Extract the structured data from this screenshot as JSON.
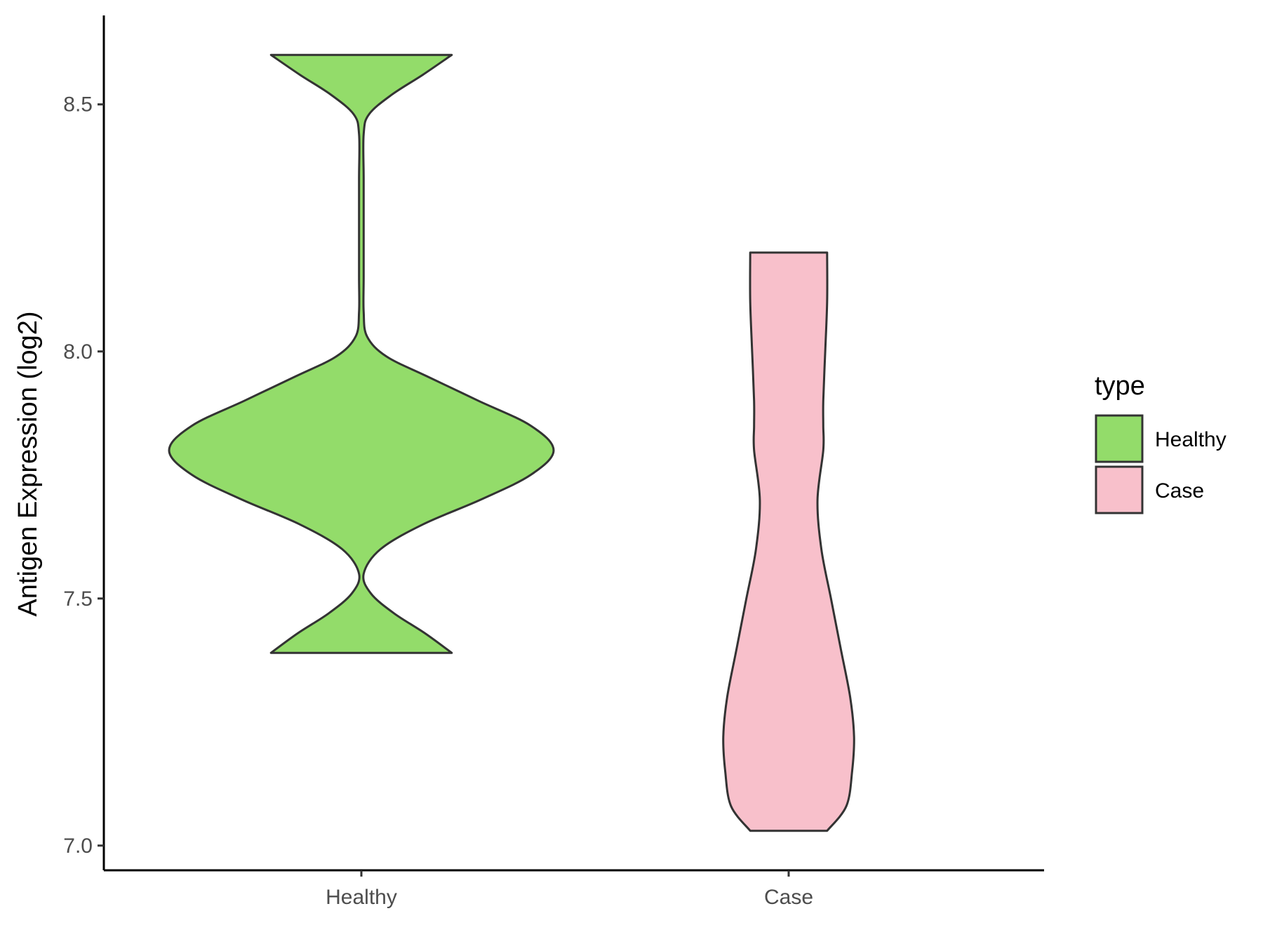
{
  "chart_data": {
    "type": "violin",
    "title": "",
    "xlabel": "",
    "ylabel": "Antigen Expression (log2)",
    "ylim": [
      6.95,
      8.68
    ],
    "yticks": [
      7.0,
      7.5,
      8.0,
      8.5
    ],
    "ytick_labels": [
      "7.0",
      "7.5",
      "8.0",
      "8.5"
    ],
    "categories": [
      "Healthy",
      "Case"
    ],
    "legend": {
      "title": "type",
      "position": "right",
      "entries": [
        "Healthy",
        "Case"
      ]
    },
    "grid": false,
    "colors": {
      "Healthy": "#93dc6a",
      "Case": "#f8c0cb",
      "outline": "#333333"
    },
    "series": [
      {
        "name": "Healthy",
        "min": 7.39,
        "max": 8.6,
        "density": [
          [
            7.39,
            0.47
          ],
          [
            7.43,
            0.33
          ],
          [
            7.47,
            0.17
          ],
          [
            7.51,
            0.05
          ],
          [
            7.55,
            0.0
          ],
          [
            7.6,
            0.1
          ],
          [
            7.65,
            0.32
          ],
          [
            7.7,
            0.62
          ],
          [
            7.75,
            0.88
          ],
          [
            7.8,
            1.0
          ],
          [
            7.85,
            0.88
          ],
          [
            7.9,
            0.61
          ],
          [
            7.95,
            0.34
          ],
          [
            7.99,
            0.13
          ],
          [
            8.03,
            0.03
          ],
          [
            8.08,
            0.0
          ],
          [
            8.15,
            0.0
          ],
          [
            8.25,
            0.0
          ],
          [
            8.35,
            0.0
          ],
          [
            8.44,
            0.0
          ],
          [
            8.48,
            0.04
          ],
          [
            8.52,
            0.16
          ],
          [
            8.56,
            0.32
          ],
          [
            8.6,
            0.47
          ]
        ]
      },
      {
        "name": "Case",
        "min": 7.03,
        "max": 8.2,
        "density": [
          [
            7.03,
            0.2
          ],
          [
            7.08,
            0.3
          ],
          [
            7.15,
            0.33
          ],
          [
            7.22,
            0.34
          ],
          [
            7.3,
            0.32
          ],
          [
            7.4,
            0.27
          ],
          [
            7.5,
            0.22
          ],
          [
            7.6,
            0.17
          ],
          [
            7.7,
            0.15
          ],
          [
            7.8,
            0.18
          ],
          [
            7.85,
            0.18
          ],
          [
            7.9,
            0.18
          ],
          [
            8.0,
            0.19
          ],
          [
            8.1,
            0.2
          ],
          [
            8.2,
            0.2
          ]
        ]
      }
    ]
  }
}
